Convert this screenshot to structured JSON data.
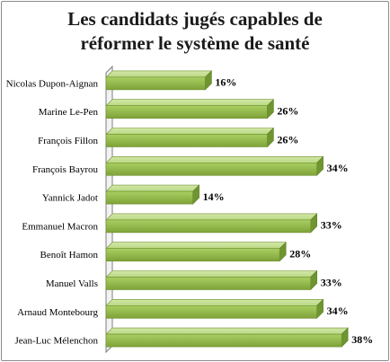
{
  "chart_data": {
    "type": "bar",
    "orientation": "horizontal",
    "style": "3d",
    "title_line1": "Les candidats jugés capables de",
    "title_line2": "réformer le système de santé",
    "categories": [
      "Nicolas Dupon-Aignan",
      "Marine Le-Pen",
      "François Fillon",
      "François Bayrou",
      "Yannick Jadot",
      "Emmanuel Macron",
      "Benoît Hamon",
      "Manuel Valls",
      "Arnaud Montebourg",
      "Jean-Luc Mélenchon"
    ],
    "values": [
      16,
      26,
      26,
      34,
      14,
      33,
      28,
      33,
      34,
      38
    ],
    "value_labels": [
      "16%",
      "26%",
      "26%",
      "34%",
      "14%",
      "33%",
      "28%",
      "33%",
      "34%",
      "38%"
    ],
    "xlim": [
      0,
      40
    ],
    "bar_color": "#8bb53f",
    "grid": false,
    "legend": "none"
  }
}
